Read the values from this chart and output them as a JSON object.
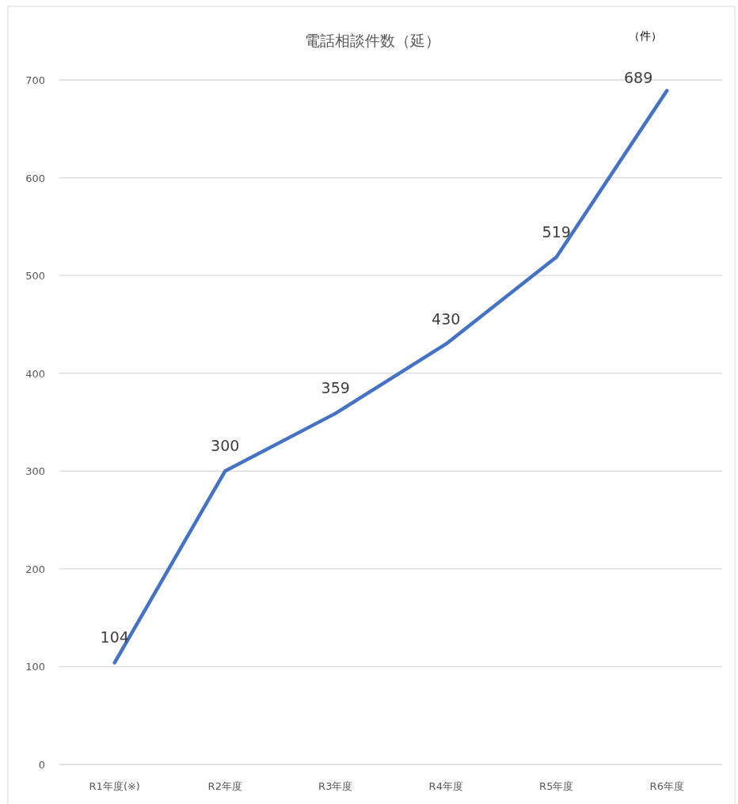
{
  "chart_data": {
    "type": "line",
    "title": "電話相談件数（延）",
    "annotations": [
      "（件）"
    ],
    "categories": [
      "R1年度(※)",
      "R2年度",
      "R3年度",
      "R4年度",
      "R5年度",
      "R6年度"
    ],
    "series": [
      {
        "color": "#4472c4",
        "values": [
          104,
          300,
          359,
          430,
          519,
          689
        ]
      }
    ],
    "ylim": [
      0,
      700
    ],
    "yticks": [
      0,
      100,
      200,
      300,
      400,
      500,
      600,
      700
    ],
    "grid": "y",
    "data_labels": true,
    "marker": "none",
    "line_style": "solid"
  }
}
